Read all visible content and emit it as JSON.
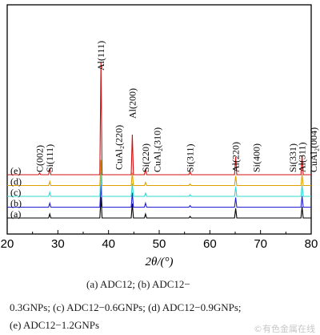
{
  "chart_data": {
    "type": "line",
    "xlabel": "2θ/(°)",
    "xlim": [
      20,
      80
    ],
    "xticks": [
      20,
      30,
      40,
      50,
      60,
      70,
      80
    ],
    "ytick_labels": false,
    "series": [
      {
        "name": "(a)",
        "color": "#000000",
        "offset": 0,
        "peaks": [
          [
            28.4,
            5
          ],
          [
            38.5,
            26
          ],
          [
            44.7,
            18
          ],
          [
            47.3,
            5
          ],
          [
            56.1,
            2
          ],
          [
            65.1,
            12
          ],
          [
            78.2,
            14
          ]
        ]
      },
      {
        "name": "(b)",
        "color": "#1f1fd6",
        "offset": 1,
        "peaks": [
          [
            28.4,
            5
          ],
          [
            38.5,
            28
          ],
          [
            44.7,
            18
          ],
          [
            47.3,
            5
          ],
          [
            56.1,
            2
          ],
          [
            65.1,
            12
          ],
          [
            78.2,
            14
          ]
        ]
      },
      {
        "name": "(c)",
        "color": "#2fd8d0",
        "offset": 2,
        "peaks": [
          [
            28.4,
            5
          ],
          [
            38.5,
            30
          ],
          [
            44.7,
            16
          ],
          [
            47.3,
            4
          ],
          [
            56.1,
            2
          ],
          [
            65.1,
            12
          ],
          [
            78.2,
            14
          ]
        ]
      },
      {
        "name": "(d)",
        "color": "#e0a000",
        "offset": 3,
        "peaks": [
          [
            28.4,
            5
          ],
          [
            38.5,
            32
          ],
          [
            44.7,
            16
          ],
          [
            47.3,
            4
          ],
          [
            56.1,
            2
          ],
          [
            65.1,
            12
          ],
          [
            78.2,
            14
          ]
        ]
      },
      {
        "name": "(e)",
        "color": "#d01010",
        "offset": 4,
        "peaks": [
          [
            26.4,
            2
          ],
          [
            28.4,
            8
          ],
          [
            38.5,
            140
          ],
          [
            44.7,
            50
          ],
          [
            47.3,
            7
          ],
          [
            56.1,
            4
          ],
          [
            65.1,
            22
          ],
          [
            78.2,
            24
          ]
        ]
      }
    ],
    "annotations": [
      {
        "text": "C(002)",
        "x": 26.4
      },
      {
        "text": "Si(111)",
        "x": 28.4
      },
      {
        "text": "Al(111)",
        "x": 38.5
      },
      {
        "text": "CuAl₂(220)",
        "x": 42.0
      },
      {
        "text": "Al(200)",
        "x": 44.7
      },
      {
        "text": "Si(220)",
        "x": 47.3
      },
      {
        "text": "CuAl₂(310)",
        "x": 49.6
      },
      {
        "text": "Si(311)",
        "x": 56.1
      },
      {
        "text": "Al(220)",
        "x": 65.1
      },
      {
        "text": "Si(400)",
        "x": 69.2
      },
      {
        "text": "Si(331)",
        "x": 76.4
      },
      {
        "text": "Al(311)",
        "x": 78.2
      },
      {
        "text": "CuAl₂(004)",
        "x": 80.5
      }
    ]
  },
  "caption": {
    "line1": "(a)  ADC12;  (b)  ADC12−",
    "line2": "0.3GNPs;  (c)  ADC12−0.6GNPs;  (d)  ADC12−0.9GNPs;",
    "line3": "(e) ADC12−1.2GNPs"
  },
  "watermark": "©有色金属在线"
}
